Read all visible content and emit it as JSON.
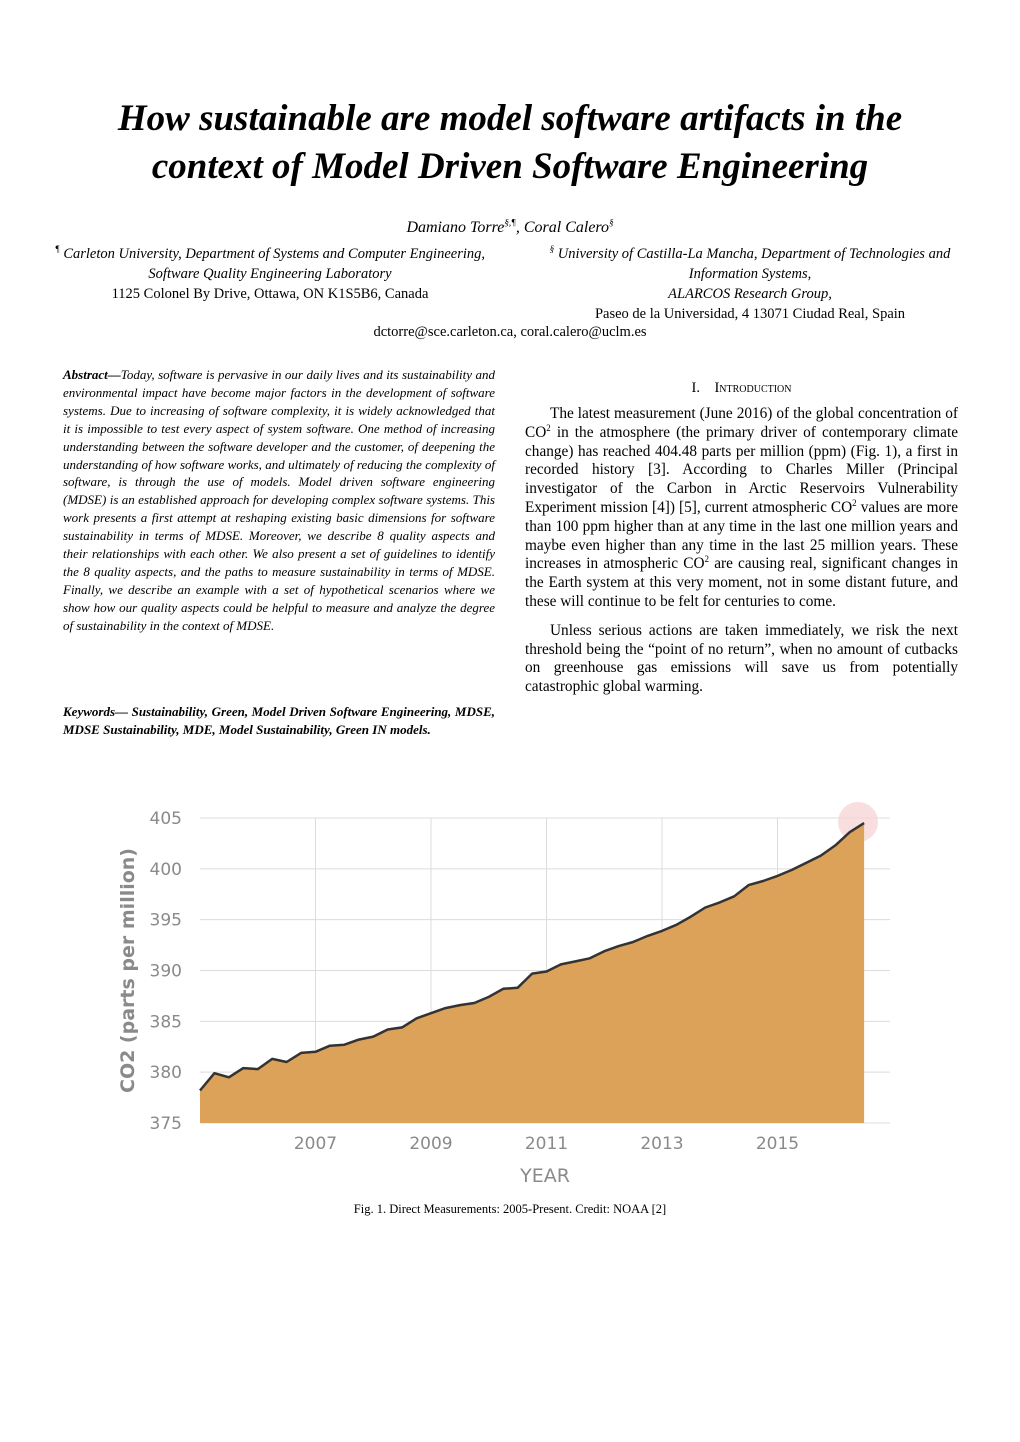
{
  "title": "How sustainable are model software artifacts in the context of Model Driven Software Engineering",
  "authors": [
    "Damiano Torre",
    "§,¶",
    ", Coral Calero",
    "§"
  ],
  "affiliations": [
    {
      "mark": "¶",
      "lines": [
        "Carleton University, Department of Systems and Computer Engineering,",
        "Software Quality Engineering Laboratory",
        "1125 Colonel By Drive, Ottawa, ON K1S5B6, Canada"
      ]
    },
    {
      "mark": "§",
      "lines": [
        "University of Castilla-La Mancha, Department of Technologies and Information Systems,",
        "ALARCOS Research Group,",
        "Paseo de la Universidad, 4 13071 Ciudad Real, Spain"
      ]
    }
  ],
  "email": "dctorre@sce.carleton.ca, coral.calero@uclm.es",
  "abstract": {
    "label": "Abstract—",
    "text": "Today, software is pervasive in our daily lives and its sustainability and environmental impact have become major factors in the development of software systems. Due to increasing of software complexity, it is widely acknowledged that it is impossible to test every aspect of system software. One method of increasing understanding between the software developer and the customer, of deepening the understanding of how software works, and ultimately of reducing the complexity of software, is through the use of models. Model driven software engineering (MDSE) is an established approach for developing complex software systems. This work presents a first attempt at reshaping existing basic dimensions for software sustainability in terms of MDSE. Moreover, we describe 8 quality aspects and their relationships with each other. We also present a set of guidelines to identify the 8 quality aspects, and the paths to measure sustainability in terms of MDSE. Finally, we describe an example with a set of hypothetical scenarios where we show how our quality aspects could be helpful to measure and analyze the degree of sustainability in the context of MDSE."
  },
  "keywords": {
    "label": "Keywords—",
    "text": " Sustainability, Green, Model Driven Software Engineering, MDSE, MDSE Sustainability, MDE, Model Sustainability, Green IN models."
  },
  "introduction": {
    "number": "I.",
    "heading": "Introduction",
    "paragraphs": [
      [
        "The latest measurement (June 2016) of the global concentration of CO",
        "2",
        " in the atmosphere (the primary driver of contemporary climate change) has reached 404.48 parts per million (ppm) (Fig. 1), a first in recorded history [3]. According to Charles Miller (Principal investigator of the Carbon in Arctic Reservoirs Vulnerability Experiment mission [4]) [5], current atmospheric CO",
        "2",
        " values are more than 100 ppm higher than at any time in the last one million years and maybe even higher than any time in the last 25 million years. These increases in atmospheric CO",
        "2",
        " are causing real, significant changes in the Earth system at this very moment, not in some distant future, and these will continue to be felt for centuries to come."
      ],
      [
        "Unless serious actions are taken immediately, we risk the next threshold being the “point of no return”, when no amount of cutbacks on greenhouse gas emissions will save us from potentially catastrophic global warming."
      ]
    ]
  },
  "figure": {
    "chart_data": {
      "type": "area",
      "x_label": "YEAR",
      "y_label": "CO2 (parts per million)",
      "x": [
        2005.0,
        2005.25,
        2005.5,
        2005.75,
        2006.0,
        2006.25,
        2006.5,
        2006.75,
        2007.0,
        2007.25,
        2007.5,
        2007.75,
        2008.0,
        2008.25,
        2008.5,
        2008.75,
        2009.0,
        2009.25,
        2009.5,
        2009.75,
        2010.0,
        2010.25,
        2010.5,
        2010.75,
        2011.0,
        2011.25,
        2011.5,
        2011.75,
        2012.0,
        2012.25,
        2012.5,
        2012.75,
        2013.0,
        2013.25,
        2013.5,
        2013.75,
        2014.0,
        2014.25,
        2014.5,
        2014.75,
        2015.0,
        2015.25,
        2015.5,
        2015.75,
        2016.0,
        2016.25,
        2016.5
      ],
      "values": [
        378.2,
        379.9,
        379.5,
        380.4,
        380.3,
        381.3,
        381.0,
        381.9,
        382.0,
        382.6,
        382.7,
        383.2,
        383.5,
        384.2,
        384.4,
        385.3,
        385.8,
        386.3,
        386.6,
        386.8,
        387.4,
        388.2,
        388.3,
        389.7,
        389.9,
        390.6,
        390.9,
        391.2,
        391.9,
        392.4,
        392.8,
        393.4,
        393.9,
        394.5,
        395.3,
        396.2,
        396.7,
        397.3,
        398.4,
        398.8,
        399.3,
        399.9,
        400.6,
        401.3,
        402.3,
        403.6,
        404.5
      ],
      "color": "#dda25a",
      "line_color": "#333333",
      "xlim": [
        2005,
        2017
      ],
      "xticks": [
        2007,
        2009,
        2011,
        2013,
        2015
      ],
      "ylim": [
        375,
        405
      ],
      "yticks": [
        375,
        380,
        385,
        390,
        395,
        400,
        405
      ],
      "grid": true
    },
    "caption": "Fig. 1. Direct Measurements: 2005-Present. Credit: NOAA [2]"
  }
}
